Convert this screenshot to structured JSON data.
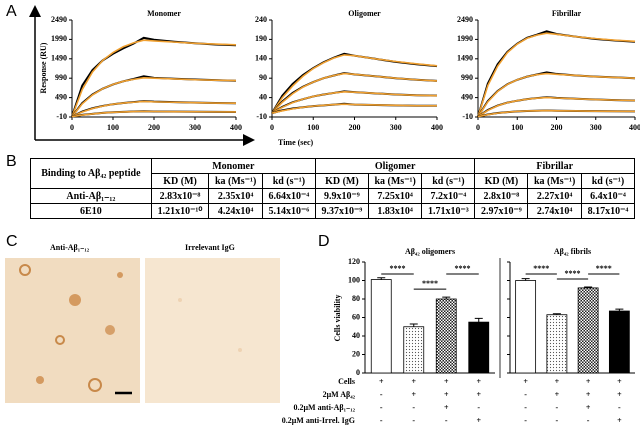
{
  "labels": [
    "A",
    "B",
    "C",
    "D"
  ],
  "chart_data": [
    {
      "type": "line",
      "title": "Monomer",
      "y_label": "Response (RU)",
      "x_label": "Time (sec)",
      "x": [
        0,
        25,
        50,
        75,
        100,
        125,
        150,
        175,
        200,
        250,
        300,
        350,
        400
      ],
      "xlim": [
        0,
        400
      ],
      "xticks": [
        0,
        100,
        200,
        300,
        400
      ],
      "ylim": [
        -10,
        2490
      ],
      "yticks": [
        -10,
        490,
        990,
        1490,
        1990,
        2490
      ],
      "series": [
        {
          "color": "#000000",
          "values": [
            0,
            800,
            1200,
            1450,
            1620,
            1760,
            1880,
            2030,
            1980,
            1930,
            1890,
            1860,
            1840
          ]
        },
        {
          "color": "#f0a030",
          "values": [
            0,
            700,
            1150,
            1450,
            1650,
            1800,
            1900,
            1970,
            1950,
            1920,
            1890,
            1870,
            1850
          ]
        },
        {
          "color": "#000000",
          "values": [
            0,
            350,
            570,
            720,
            830,
            910,
            970,
            1040,
            1000,
            975,
            955,
            940,
            925
          ]
        },
        {
          "color": "#f0a030",
          "values": [
            0,
            330,
            560,
            720,
            830,
            910,
            960,
            1000,
            990,
            970,
            950,
            940,
            930
          ]
        },
        {
          "color": "#000000",
          "values": [
            0,
            130,
            215,
            275,
            320,
            350,
            375,
            400,
            385,
            372,
            360,
            350,
            345
          ]
        },
        {
          "color": "#f0a030",
          "values": [
            0,
            120,
            210,
            270,
            320,
            350,
            370,
            390,
            380,
            370,
            360,
            350,
            345
          ]
        },
        {
          "color": "#000000",
          "values": [
            0,
            45,
            72,
            96,
            111,
            121,
            131,
            138,
            133,
            128,
            125,
            122,
            120
          ]
        },
        {
          "color": "#f0a030",
          "values": [
            0,
            40,
            70,
            95,
            110,
            120,
            130,
            135,
            132,
            128,
            125,
            122,
            120
          ]
        }
      ]
    },
    {
      "type": "line",
      "title": "Oligomer",
      "x": [
        0,
        25,
        50,
        75,
        100,
        125,
        150,
        175,
        200,
        250,
        300,
        350,
        400
      ],
      "xlim": [
        0,
        400
      ],
      "xticks": [
        0,
        100,
        200,
        300,
        400
      ],
      "ylim": [
        -10,
        240
      ],
      "yticks": [
        -10,
        40,
        90,
        140,
        190,
        240
      ],
      "series": [
        {
          "color": "#000000",
          "values": [
            0,
            45,
            75,
            98,
            116,
            131,
            143,
            153,
            148,
            140,
            132,
            126,
            121
          ]
        },
        {
          "color": "#f0a030",
          "values": [
            0,
            40,
            70,
            95,
            115,
            130,
            142,
            150,
            148,
            140,
            133,
            127,
            122
          ]
        },
        {
          "color": "#000000",
          "values": [
            0,
            30,
            52,
            68,
            80,
            90,
            97,
            103,
            100,
            95,
            90,
            86,
            83
          ]
        },
        {
          "color": "#f0a030",
          "values": [
            0,
            28,
            50,
            67,
            80,
            90,
            97,
            102,
            100,
            95,
            90,
            86,
            83
          ]
        },
        {
          "color": "#000000",
          "values": [
            0,
            16,
            28,
            36,
            43,
            48,
            52,
            56,
            54,
            51,
            48,
            46,
            45
          ]
        },
        {
          "color": "#f0a030",
          "values": [
            0,
            15,
            27,
            36,
            43,
            48,
            52,
            55,
            54,
            51,
            48,
            46,
            45
          ]
        },
        {
          "color": "#000000",
          "values": [
            0,
            7,
            12,
            15,
            18,
            20,
            22,
            24,
            22,
            21,
            20,
            19,
            19
          ]
        },
        {
          "color": "#f0a030",
          "values": [
            0,
            6,
            11,
            15,
            18,
            20,
            22,
            23,
            22,
            21,
            20,
            19,
            19
          ]
        }
      ]
    },
    {
      "type": "line",
      "title": "Fibrillar",
      "x": [
        0,
        25,
        50,
        75,
        100,
        125,
        150,
        175,
        200,
        250,
        300,
        350,
        400
      ],
      "xlim": [
        0,
        400
      ],
      "xticks": [
        0,
        100,
        200,
        300,
        400
      ],
      "ylim": [
        -10,
        2490
      ],
      "yticks": [
        -10,
        490,
        990,
        1490,
        1990,
        2490
      ],
      "series": [
        {
          "color": "#000000",
          "values": [
            0,
            850,
            1350,
            1670,
            1880,
            2030,
            2110,
            2200,
            2130,
            2060,
            2000,
            1960,
            1930
          ]
        },
        {
          "color": "#f0a030",
          "values": [
            0,
            800,
            1300,
            1650,
            1870,
            2020,
            2100,
            2150,
            2120,
            2060,
            2010,
            1970,
            1940
          ]
        },
        {
          "color": "#000000",
          "values": [
            0,
            400,
            660,
            835,
            950,
            1030,
            1085,
            1140,
            1100,
            1060,
            1030,
            1010,
            990
          ]
        },
        {
          "color": "#f0a030",
          "values": [
            0,
            380,
            650,
            830,
            950,
            1030,
            1080,
            1110,
            1090,
            1060,
            1030,
            1010,
            990
          ]
        },
        {
          "color": "#000000",
          "values": [
            0,
            170,
            285,
            362,
            410,
            450,
            478,
            500,
            482,
            460,
            440,
            425,
            415
          ]
        },
        {
          "color": "#f0a030",
          "values": [
            0,
            160,
            280,
            360,
            410,
            450,
            475,
            490,
            480,
            460,
            440,
            425,
            415
          ]
        },
        {
          "color": "#000000",
          "values": [
            0,
            55,
            92,
            116,
            135,
            145,
            151,
            158,
            151,
            145,
            140,
            137,
            135
          ]
        },
        {
          "color": "#f0a030",
          "values": [
            0,
            50,
            90,
            115,
            135,
            145,
            150,
            155,
            150,
            145,
            140,
            137,
            135
          ]
        }
      ]
    },
    {
      "type": "bar",
      "title": "Aβ₄₂ oligomers",
      "y_label": "Cells viability",
      "values": [
        101,
        50,
        80,
        55
      ],
      "errors": [
        2,
        3,
        2,
        4
      ],
      "fills": [
        "white",
        "dots",
        "checks",
        "black"
      ],
      "ylim": [
        0,
        120
      ],
      "yticks": [
        0,
        20,
        40,
        60,
        80,
        100,
        120
      ],
      "significance": [
        "****",
        "****",
        "****"
      ]
    },
    {
      "type": "bar",
      "title": "Aβ₄₂ fibrils",
      "values": [
        100,
        63,
        92,
        67
      ],
      "errors": [
        2,
        1,
        1,
        2
      ],
      "fills": [
        "white",
        "dots",
        "checks",
        "black"
      ],
      "ylim": [
        0,
        120
      ],
      "yticks": [
        0,
        20,
        40,
        60,
        80,
        100,
        120
      ],
      "significance": [
        "****",
        "****",
        "****"
      ]
    }
  ],
  "table": {
    "header": [
      "Binding to Aβ₄₂ peptide",
      "Monomer",
      "Oligomer",
      "Fibrillar"
    ],
    "subheader": [
      "KD (M)",
      "ka (Ms⁻¹)",
      "kd (s⁻¹)",
      "KD (M)",
      "ka (Ms⁻¹)",
      "kd (s⁻¹)",
      "KD (M)",
      "ka (Ms⁻¹)",
      "kd (s⁻¹)"
    ],
    "rows": [
      [
        "Anti-Aβ₁₋₁₂",
        "2.83x10⁻⁸",
        "2.35x10⁴",
        "6.64x10⁻⁴",
        "9.9x10⁻⁹",
        "7.25x10⁴",
        "7.2x10⁻⁴",
        "2.8x10⁻⁸",
        "2.27x10⁴",
        "6.4x10⁻⁴"
      ],
      [
        "6E10",
        "1.21x10⁻¹⁰",
        "4.24x10⁴",
        "5.14x10⁻⁶",
        "9.37x10⁻⁹",
        "1.83x10⁴",
        "1.71x10⁻³",
        "2.97x10⁻⁹",
        "2.74x10⁴",
        "8.17x10⁻⁴"
      ]
    ]
  },
  "images": [
    {
      "caption": "Anti-Aβ₁₋₁₂"
    },
    {
      "caption": "Irrelevant IgG"
    }
  ],
  "conditions": [
    {
      "label": "Cells",
      "signs": [
        "+",
        "+",
        "+",
        "+",
        "+",
        "+",
        "+",
        "+"
      ]
    },
    {
      "label": "2μM Aβ₄₂",
      "signs": [
        "-",
        "+",
        "+",
        "+",
        "-",
        "+",
        "+",
        "+"
      ]
    },
    {
      "label": "0.2μM anti-Aβ₁₋₁₂",
      "signs": [
        "-",
        "-",
        "+",
        "-",
        "-",
        "-",
        "+",
        "-"
      ]
    },
    {
      "label": "0.2μM anti-Irrel. IgG",
      "signs": [
        "-",
        "-",
        "-",
        "+",
        "-",
        "-",
        "-",
        "+"
      ]
    }
  ]
}
